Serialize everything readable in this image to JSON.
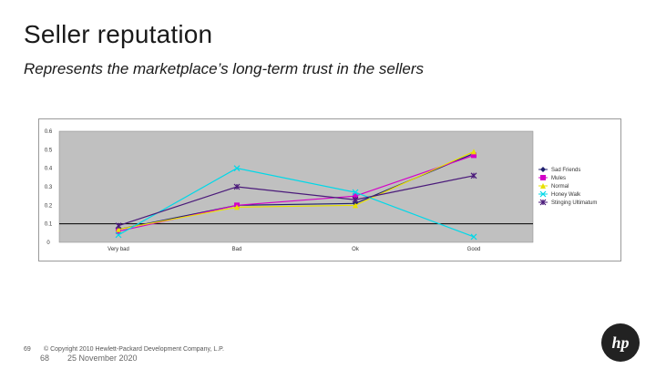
{
  "slide": {
    "title": "Seller reputation",
    "subtitle": "Represents the marketplace’s long-term trust in the sellers",
    "footer_page": "69",
    "footer_copyright": "© Copyright 2010 Hewlett-Packard Development Company, L.P.",
    "footer_num": "68",
    "footer_date": "25 November 2020",
    "logo_text": "hp"
  },
  "chart_data": {
    "type": "line",
    "categories": [
      "Very bad",
      "Bad",
      "Ok",
      "Good"
    ],
    "ylim": [
      0,
      0.6
    ],
    "yticks": [
      "0",
      "0.1",
      "0.2",
      "0.3",
      "0.4",
      "0.5",
      "0.6"
    ],
    "plot_bg": "#c0c0c0",
    "series": [
      {
        "name": "Sad Friends",
        "color": "#1f1f6e",
        "marker": "diamond",
        "values": [
          0.07,
          0.2,
          0.21,
          0.48
        ]
      },
      {
        "name": "Mules",
        "color": "#d400c8",
        "marker": "square",
        "values": [
          0.06,
          0.2,
          0.25,
          0.47
        ]
      },
      {
        "name": "Normal",
        "color": "#e8e000",
        "marker": "triangle",
        "values": [
          0.07,
          0.19,
          0.2,
          0.49
        ]
      },
      {
        "name": "Honey Walk",
        "color": "#00d8e8",
        "marker": "x",
        "values": [
          0.04,
          0.4,
          0.27,
          0.03
        ]
      },
      {
        "name": "Stinging Ultimatum",
        "color": "#4a1a7a",
        "marker": "star",
        "values": [
          0.09,
          0.3,
          0.23,
          0.36
        ]
      }
    ]
  }
}
